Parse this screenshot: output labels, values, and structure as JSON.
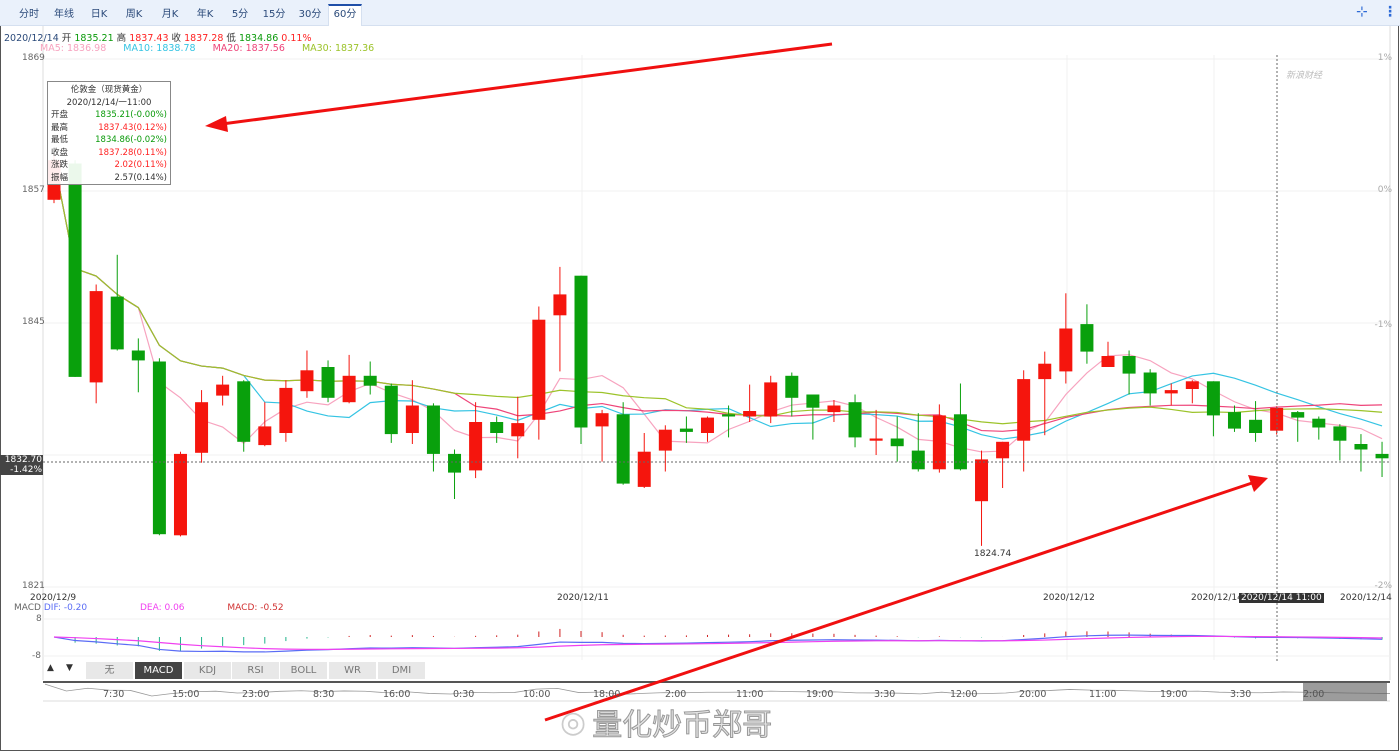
{
  "tabs": [
    "分时",
    "年线",
    "日K",
    "周K",
    "月K",
    "年K",
    "5分",
    "15分",
    "30分",
    "60分"
  ],
  "active_tab": "60分",
  "toolbar_icons": [
    "compress-icon",
    "more-vertical-icon"
  ],
  "info": {
    "date": "2020/12/14",
    "open_label": "开",
    "open": "1835.21",
    "high_label": "高",
    "high": "1837.43",
    "close_label": "收",
    "close": "1837.28",
    "low_label": "低",
    "low": "1834.86",
    "change": "0.11%"
  },
  "ma": {
    "ma5": "MA5: 1836.98",
    "ma10": "MA10: 1838.78",
    "ma20": "MA20: 1837.56",
    "ma30": "MA30: 1837.36"
  },
  "y_axis_left": [
    "1869",
    "1857",
    "1845",
    "1821"
  ],
  "y_axis_right": [
    "1%",
    "0%",
    "-1%",
    "-2%"
  ],
  "current_price": {
    "value": "1832.70",
    "change": "-1.42%"
  },
  "x_dates": [
    "2020/12/9",
    "2020/12/11",
    "2020/12/12",
    "2020/12/14",
    "2020/12/14"
  ],
  "crosshair_date": "2020/12/14 11:00",
  "low_marker": "1824.74",
  "logo": "新浪财经",
  "tooltip": {
    "title": "伦敦金（现货黄金）",
    "datetime": "2020/12/14/一11:00",
    "rows": [
      {
        "label": "开盘",
        "value": "1835.21(-0.00%)",
        "color": "#0a9a0a"
      },
      {
        "label": "最高",
        "value": "1837.43(0.12%)",
        "color": "#f22"
      },
      {
        "label": "最低",
        "value": "1834.86(-0.02%)",
        "color": "#0a9a0a"
      },
      {
        "label": "收盘",
        "value": "1837.28(0.11%)",
        "color": "#f22"
      },
      {
        "label": "涨跌",
        "value": "2.02(0.11%)",
        "color": "#f22"
      },
      {
        "label": "振幅",
        "value": "2.57(0.14%)",
        "color": "#333"
      }
    ]
  },
  "macd": {
    "label": "MACD",
    "dif": "DIF: -0.20",
    "dea": "DEA: 0.06",
    "macd": "MACD: -0.52",
    "ticks": [
      "8",
      "-8"
    ]
  },
  "indicator_tabs": [
    "无",
    "MACD",
    "KDJ",
    "RSI",
    "BOLL",
    "WR",
    "DMI"
  ],
  "active_indicator": "MACD",
  "scroll_buttons": [
    "▲",
    "▼"
  ],
  "navigator_labels": [
    "7:30",
    "15:00",
    "23:00",
    "8:30",
    "16:00",
    "0:30",
    "10:00",
    "18:00",
    "2:00",
    "11:00",
    "19:00",
    "3:30",
    "12:00",
    "20:00",
    "11:00",
    "19:00",
    "3:30",
    "2:00"
  ],
  "watermark": "量化炒币郑哥",
  "colors": {
    "up": "#f5150d",
    "down": "#09a00c",
    "ma5": "#f7a3bf",
    "ma10": "#35c4e3",
    "ma20": "#ee4479",
    "ma30": "#9cc32a",
    "dif": "#5a6cf5",
    "dea": "#f040f0",
    "annotation": "#f01010"
  },
  "chart_data": {
    "type": "candlestick",
    "ylim": [
      1821,
      1869
    ],
    "series_order": "open,high,low,close",
    "candles": [
      [
        1856.2,
        1860.3,
        1855.9,
        1859.8
      ],
      [
        1859.5,
        1859.8,
        1840.1,
        1840.1
      ],
      [
        1839.6,
        1848.5,
        1837.7,
        1847.9
      ],
      [
        1847.4,
        1851.2,
        1842.5,
        1842.6
      ],
      [
        1842.5,
        1843.6,
        1838.7,
        1841.6
      ],
      [
        1841.5,
        1841.8,
        1825.7,
        1825.8
      ],
      [
        1825.7,
        1833.3,
        1825.6,
        1833.1
      ],
      [
        1833.2,
        1838.9,
        1832.3,
        1837.8
      ],
      [
        1838.4,
        1840.2,
        1837.5,
        1839.4
      ],
      [
        1839.7,
        1839.8,
        1833.3,
        1834.2
      ],
      [
        1833.9,
        1837.8,
        1833.8,
        1835.6
      ],
      [
        1835.0,
        1839.8,
        1834.2,
        1839.1
      ],
      [
        1838.8,
        1842.5,
        1838.2,
        1840.7
      ],
      [
        1841.0,
        1841.6,
        1837.8,
        1838.2
      ],
      [
        1837.8,
        1842.1,
        1837.7,
        1840.2
      ],
      [
        1840.2,
        1841.5,
        1838.5,
        1839.3
      ],
      [
        1839.3,
        1839.5,
        1834.1,
        1834.9
      ],
      [
        1835.0,
        1839.8,
        1834.0,
        1837.5
      ],
      [
        1837.5,
        1837.7,
        1831.5,
        1833.1
      ],
      [
        1833.1,
        1833.5,
        1829.0,
        1831.4
      ],
      [
        1831.6,
        1837.8,
        1830.9,
        1836.0
      ],
      [
        1836.0,
        1836.5,
        1834.1,
        1835.0
      ],
      [
        1834.7,
        1838.3,
        1832.7,
        1835.9
      ],
      [
        1836.2,
        1846.5,
        1834.4,
        1845.3
      ],
      [
        1845.7,
        1850.1,
        1840.6,
        1847.6
      ],
      [
        1849.3,
        1849.3,
        1834.0,
        1835.5
      ],
      [
        1835.6,
        1837.1,
        1832.4,
        1836.8
      ],
      [
        1836.7,
        1837.8,
        1830.3,
        1830.4
      ],
      [
        1830.1,
        1835.0,
        1830.0,
        1833.3
      ],
      [
        1833.4,
        1835.7,
        1831.5,
        1835.3
      ],
      [
        1835.4,
        1836.5,
        1834.1,
        1835.1
      ],
      [
        1835.0,
        1836.5,
        1834.2,
        1836.4
      ],
      [
        1836.7,
        1837.5,
        1834.6,
        1836.5
      ],
      [
        1836.5,
        1839.4,
        1836.0,
        1837.0
      ],
      [
        1836.5,
        1840.2,
        1835.9,
        1839.6
      ],
      [
        1840.2,
        1840.5,
        1836.5,
        1838.2
      ],
      [
        1838.5,
        1838.5,
        1834.4,
        1837.3
      ],
      [
        1836.9,
        1838.0,
        1836.0,
        1837.5
      ],
      [
        1837.8,
        1838.5,
        1833.7,
        1834.6
      ],
      [
        1834.3,
        1837.1,
        1833.0,
        1834.5
      ],
      [
        1834.5,
        1836.5,
        1832.4,
        1833.8
      ],
      [
        1833.4,
        1836.8,
        1831.5,
        1831.7
      ],
      [
        1831.7,
        1837.6,
        1831.4,
        1836.6
      ],
      [
        1836.7,
        1839.5,
        1831.6,
        1831.7
      ],
      [
        1828.8,
        1833.4,
        1824.74,
        1832.6
      ],
      [
        1832.7,
        1834.2,
        1830.0,
        1834.2
      ],
      [
        1834.3,
        1840.7,
        1831.5,
        1839.9
      ],
      [
        1839.9,
        1842.4,
        1834.8,
        1841.3
      ],
      [
        1840.6,
        1847.7,
        1839.5,
        1844.5
      ],
      [
        1844.9,
        1846.7,
        1841.3,
        1842.4
      ],
      [
        1841.0,
        1843.3,
        1841.0,
        1842.0
      ],
      [
        1842.0,
        1842.5,
        1838.5,
        1840.4
      ],
      [
        1840.5,
        1840.8,
        1837.5,
        1838.6
      ],
      [
        1838.6,
        1839.5,
        1837.5,
        1838.9
      ],
      [
        1839.0,
        1839.8,
        1837.7,
        1839.7
      ],
      [
        1839.7,
        1839.7,
        1834.7,
        1836.6
      ],
      [
        1836.9,
        1837.5,
        1835.1,
        1835.4
      ],
      [
        1836.2,
        1837.9,
        1834.2,
        1835.0
      ],
      [
        1835.21,
        1837.43,
        1834.86,
        1837.28
      ],
      [
        1836.9,
        1837.0,
        1834.2,
        1836.4
      ],
      [
        1836.3,
        1836.5,
        1834.4,
        1835.5
      ],
      [
        1835.6,
        1835.8,
        1832.5,
        1834.3
      ],
      [
        1834.0,
        1834.9,
        1831.5,
        1833.5
      ],
      [
        1833.1,
        1834.2,
        1831.0,
        1832.7
      ]
    ]
  }
}
